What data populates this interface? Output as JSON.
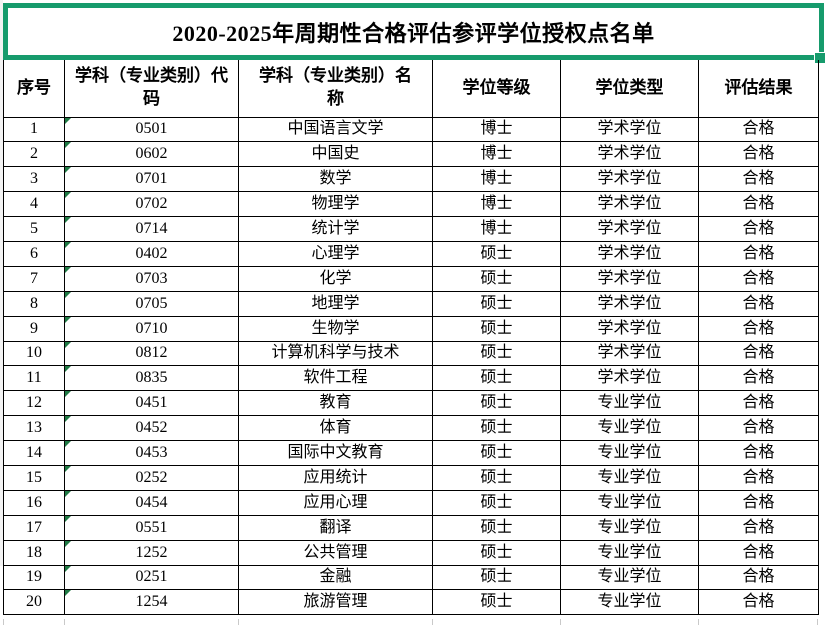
{
  "title": "2020-2025年周期性合格评估参评学位授权点名单",
  "colors": {
    "selection_green": "#169b6c",
    "flag_green": "#1f7a44",
    "border_black": "#000000",
    "gridline_gray": "#c9c9c9"
  },
  "icons": {
    "fill_handle": "selection-fill-handle",
    "corner_flag": "number-stored-as-text-flag-icon"
  },
  "table": {
    "headers": [
      "序号",
      "学科（专业类别）代\n码",
      "学科（专业类别）名\n称",
      "学位等级",
      "学位类型",
      "评估结果"
    ],
    "rows": [
      [
        "1",
        "0501",
        "中国语言文学",
        "博士",
        "学术学位",
        "合格"
      ],
      [
        "2",
        "0602",
        "中国史",
        "博士",
        "学术学位",
        "合格"
      ],
      [
        "3",
        "0701",
        "数学",
        "博士",
        "学术学位",
        "合格"
      ],
      [
        "4",
        "0702",
        "物理学",
        "博士",
        "学术学位",
        "合格"
      ],
      [
        "5",
        "0714",
        "统计学",
        "博士",
        "学术学位",
        "合格"
      ],
      [
        "6",
        "0402",
        "心理学",
        "硕士",
        "学术学位",
        "合格"
      ],
      [
        "7",
        "0703",
        "化学",
        "硕士",
        "学术学位",
        "合格"
      ],
      [
        "8",
        "0705",
        "地理学",
        "硕士",
        "学术学位",
        "合格"
      ],
      [
        "9",
        "0710",
        "生物学",
        "硕士",
        "学术学位",
        "合格"
      ],
      [
        "10",
        "0812",
        "计算机科学与技术",
        "硕士",
        "学术学位",
        "合格"
      ],
      [
        "11",
        "0835",
        "软件工程",
        "硕士",
        "学术学位",
        "合格"
      ],
      [
        "12",
        "0451",
        "教育",
        "硕士",
        "专业学位",
        "合格"
      ],
      [
        "13",
        "0452",
        "体育",
        "硕士",
        "专业学位",
        "合格"
      ],
      [
        "14",
        "0453",
        "国际中文教育",
        "硕士",
        "专业学位",
        "合格"
      ],
      [
        "15",
        "0252",
        "应用统计",
        "硕士",
        "专业学位",
        "合格"
      ],
      [
        "16",
        "0454",
        "应用心理",
        "硕士",
        "专业学位",
        "合格"
      ],
      [
        "17",
        "0551",
        "翻译",
        "硕士",
        "专业学位",
        "合格"
      ],
      [
        "18",
        "1252",
        "公共管理",
        "硕士",
        "专业学位",
        "合格"
      ],
      [
        "19",
        "0251",
        "金融",
        "硕士",
        "专业学位",
        "合格"
      ],
      [
        "20",
        "1254",
        "旅游管理",
        "硕士",
        "专业学位",
        "合格"
      ]
    ]
  }
}
